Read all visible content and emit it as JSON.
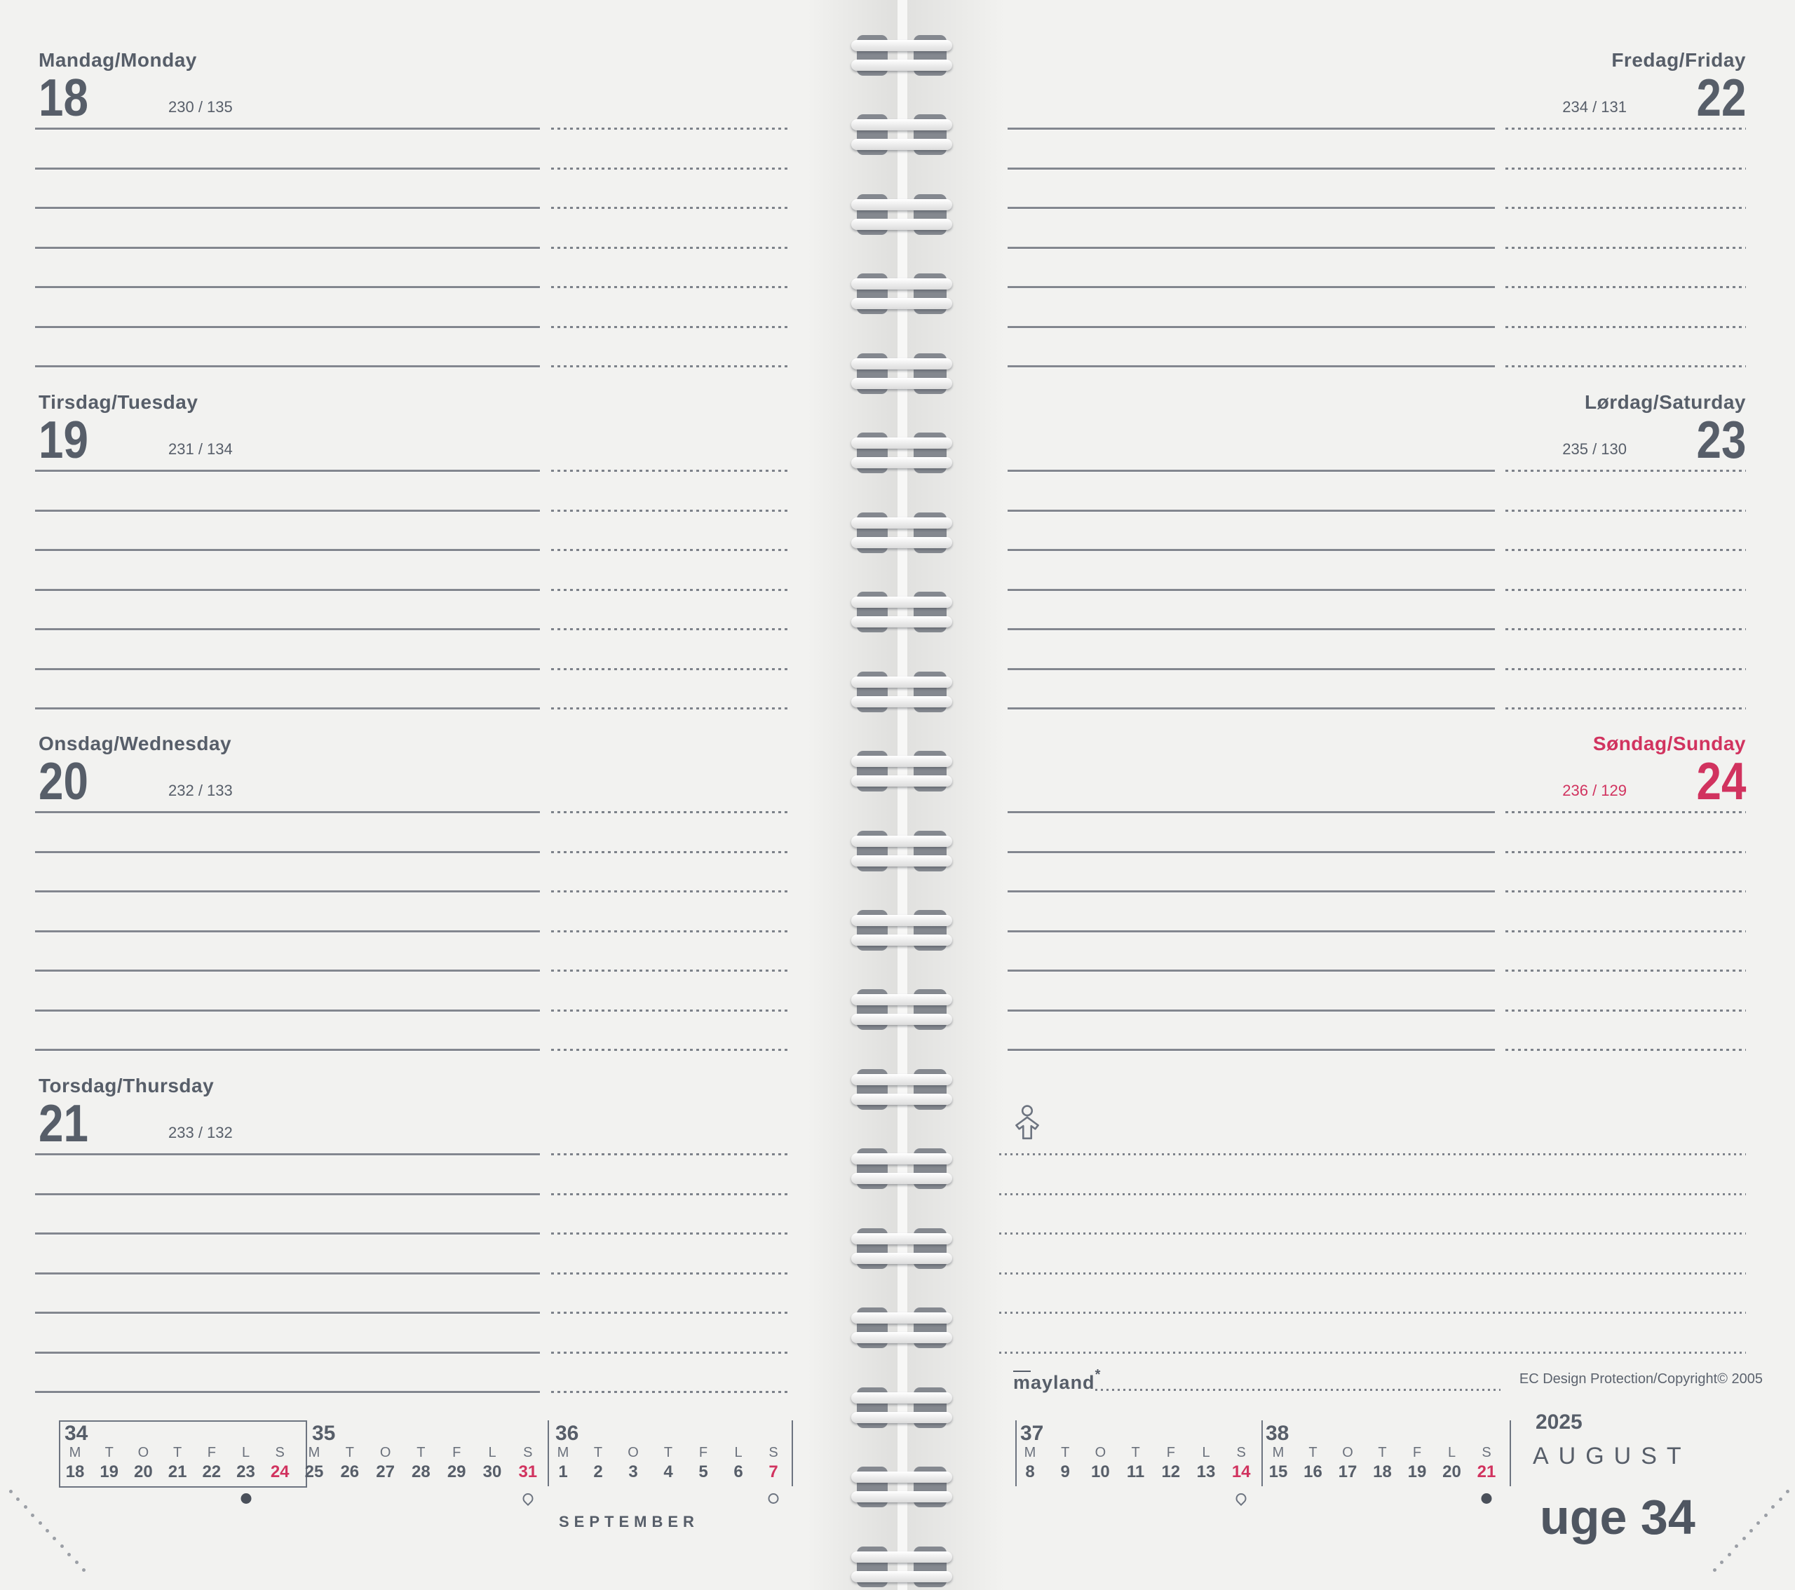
{
  "palette": {
    "paper": "#f2f2f0",
    "ink": "#575e69",
    "line": "#83878f",
    "red": "#d1335f",
    "muted": "#6b717c"
  },
  "left_page": {
    "days": [
      {
        "name": "Mandag/Monday",
        "number": "18",
        "day_of_year": "230 / 135",
        "red": false
      },
      {
        "name": "Tirsdag/Tuesday",
        "number": "19",
        "day_of_year": "231 / 134",
        "red": false
      },
      {
        "name": "Onsdag/Wednesday",
        "number": "20",
        "day_of_year": "232 / 133",
        "red": false
      },
      {
        "name": "Torsdag/Thursday",
        "number": "21",
        "day_of_year": "233 / 132",
        "red": false
      }
    ],
    "mini_calendar": {
      "month_label": "SEPTEMBER",
      "weeks": [
        {
          "num": "34",
          "letters": [
            "M",
            "T",
            "O",
            "T",
            "F",
            "L",
            "S"
          ],
          "dates": [
            "18",
            "19",
            "20",
            "21",
            "22",
            "23",
            "24"
          ],
          "red_index": 6,
          "moon": {
            "type": "new",
            "col": 5
          }
        },
        {
          "num": "35",
          "letters": [
            "M",
            "T",
            "O",
            "T",
            "F",
            "L",
            "S"
          ],
          "dates": [
            "25",
            "26",
            "27",
            "28",
            "29",
            "30",
            "31"
          ],
          "red_index": 6,
          "moon": {
            "type": "first-quarter",
            "col": 6
          }
        },
        {
          "num": "36",
          "letters": [
            "M",
            "T",
            "O",
            "T",
            "F",
            "L",
            "S"
          ],
          "dates": [
            "1",
            "2",
            "3",
            "4",
            "5",
            "6",
            "7"
          ],
          "red_index": 6,
          "moon": {
            "type": "full",
            "col": 6
          }
        }
      ]
    }
  },
  "right_page": {
    "days": [
      {
        "name": "Fredag/Friday",
        "number": "22",
        "day_of_year": "234 / 131",
        "red": false
      },
      {
        "name": "Lørdag/Saturday",
        "number": "23",
        "day_of_year": "235 / 130",
        "red": false
      },
      {
        "name": "Søndag/Sunday",
        "number": "24",
        "day_of_year": "236 / 129",
        "red": true
      }
    ],
    "notes_icon": "person-icon",
    "footer": {
      "logo_text": "mayland",
      "logo_mark": "*",
      "copyright": "EC Design Protection/Copyright© 2005"
    },
    "mini_calendar": {
      "weeks": [
        {
          "num": "37",
          "letters": [
            "M",
            "T",
            "O",
            "T",
            "F",
            "L",
            "S"
          ],
          "dates": [
            "8",
            "9",
            "10",
            "11",
            "12",
            "13",
            "14"
          ],
          "red_index": 6,
          "moon": {
            "type": "last-quarter",
            "col": 6
          }
        },
        {
          "num": "38",
          "letters": [
            "M",
            "T",
            "O",
            "T",
            "F",
            "L",
            "S"
          ],
          "dates": [
            "15",
            "16",
            "17",
            "18",
            "19",
            "20",
            "21"
          ],
          "red_index": 6,
          "moon": {
            "type": "new",
            "col": 6
          }
        }
      ]
    },
    "year_block": {
      "year": "2025",
      "month": "AUGUST",
      "week_label": "uge 34"
    }
  }
}
